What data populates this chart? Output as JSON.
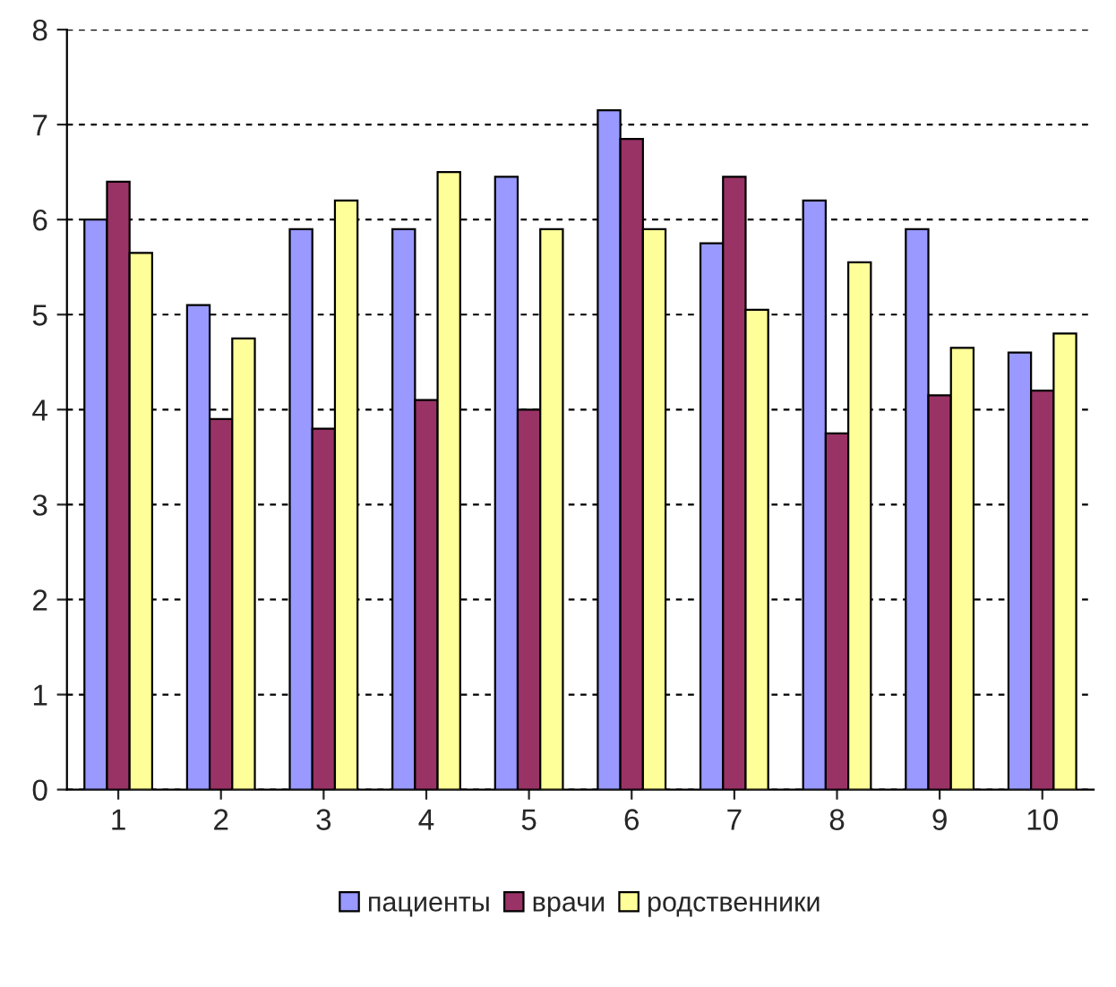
{
  "chart_data": {
    "type": "bar",
    "categories": [
      "1",
      "2",
      "3",
      "4",
      "5",
      "6",
      "7",
      "8",
      "9",
      "10"
    ],
    "series": [
      {
        "name": "пациенты",
        "color": "#9999ff",
        "values": [
          6.0,
          5.1,
          5.9,
          5.9,
          6.45,
          7.15,
          5.75,
          6.2,
          5.9,
          4.6
        ]
      },
      {
        "name": "врачи",
        "color": "#993366",
        "values": [
          6.4,
          3.9,
          3.8,
          4.1,
          4.0,
          6.85,
          6.45,
          3.75,
          4.15,
          4.2
        ]
      },
      {
        "name": "родственники",
        "color": "#ffff99",
        "values": [
          5.65,
          4.75,
          6.2,
          6.5,
          5.9,
          5.9,
          5.05,
          5.55,
          4.65,
          4.8
        ]
      }
    ],
    "ylim": [
      0,
      8
    ],
    "yticks": [
      0,
      1,
      2,
      3,
      4,
      5,
      6,
      7,
      8
    ],
    "grid": "y",
    "legend": "bottom"
  }
}
